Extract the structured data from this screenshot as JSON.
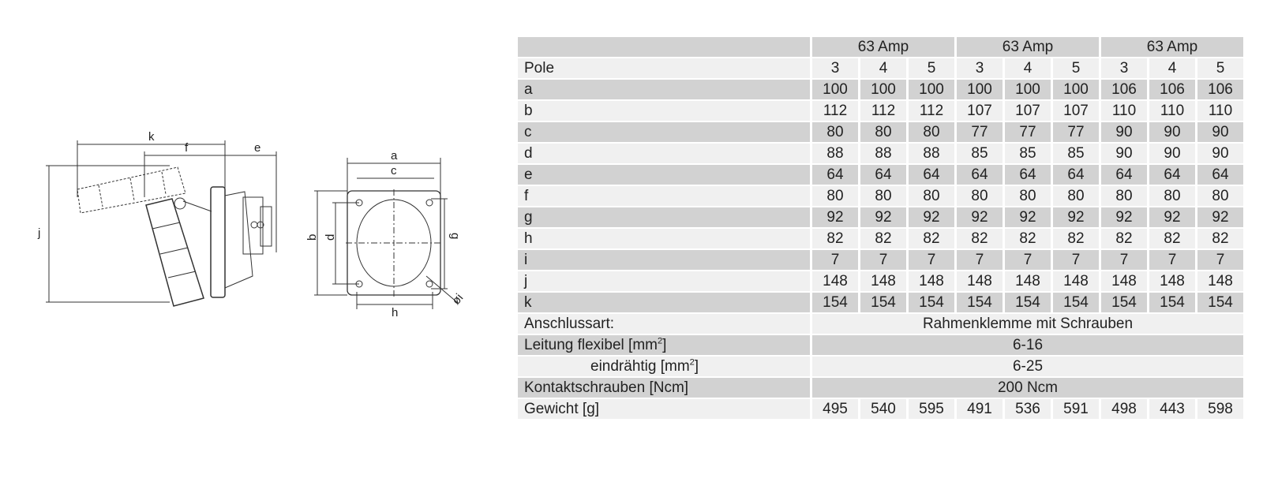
{
  "drawing": {
    "dimension_labels": {
      "k": "k",
      "f": "f",
      "e": "e",
      "j": "j",
      "a": "a",
      "c": "c",
      "b": "b",
      "d": "d",
      "g": "g",
      "h": "h",
      "i": "øi"
    }
  },
  "table": {
    "groups": [
      "63 Amp",
      "63 Amp",
      "63 Amp"
    ],
    "rows": [
      {
        "label": "Pole",
        "values": [
          "3",
          "4",
          "5",
          "3",
          "4",
          "5",
          "3",
          "4",
          "5"
        ]
      },
      {
        "label": "a",
        "values": [
          "100",
          "100",
          "100",
          "100",
          "100",
          "100",
          "106",
          "106",
          "106"
        ]
      },
      {
        "label": "b",
        "values": [
          "112",
          "112",
          "112",
          "107",
          "107",
          "107",
          "110",
          "110",
          "110"
        ]
      },
      {
        "label": "c",
        "values": [
          "80",
          "80",
          "80",
          "77",
          "77",
          "77",
          "90",
          "90",
          "90"
        ]
      },
      {
        "label": "d",
        "values": [
          "88",
          "88",
          "88",
          "85",
          "85",
          "85",
          "90",
          "90",
          "90"
        ]
      },
      {
        "label": "e",
        "values": [
          "64",
          "64",
          "64",
          "64",
          "64",
          "64",
          "64",
          "64",
          "64"
        ]
      },
      {
        "label": "f",
        "values": [
          "80",
          "80",
          "80",
          "80",
          "80",
          "80",
          "80",
          "80",
          "80"
        ]
      },
      {
        "label": "g",
        "values": [
          "92",
          "92",
          "92",
          "92",
          "92",
          "92",
          "92",
          "92",
          "92"
        ]
      },
      {
        "label": "h",
        "values": [
          "82",
          "82",
          "82",
          "82",
          "82",
          "82",
          "82",
          "82",
          "82"
        ]
      },
      {
        "label": "i",
        "values": [
          "7",
          "7",
          "7",
          "7",
          "7",
          "7",
          "7",
          "7",
          "7"
        ]
      },
      {
        "label": "j",
        "values": [
          "148",
          "148",
          "148",
          "148",
          "148",
          "148",
          "148",
          "148",
          "148"
        ]
      },
      {
        "label": "k",
        "values": [
          "154",
          "154",
          "154",
          "154",
          "154",
          "154",
          "154",
          "154",
          "154"
        ]
      }
    ],
    "spec_rows": [
      {
        "label": "Anschlussart:",
        "value": "Rahmenklemme mit Schrauben"
      },
      {
        "label": "Leitung  flexibel [mm",
        "sup": "2",
        "label_end": "]",
        "value": "6-16"
      },
      {
        "label": "eindrähtig [mm",
        "sup": "2",
        "label_end": "]",
        "value": "6-25",
        "indent": true
      },
      {
        "label": "Kontaktschrauben [Ncm]",
        "value": "200 Ncm"
      }
    ],
    "weight_row": {
      "label": "Gewicht [g]",
      "values": [
        "495",
        "540",
        "595",
        "491",
        "536",
        "591",
        "498",
        "443",
        "598"
      ]
    }
  }
}
